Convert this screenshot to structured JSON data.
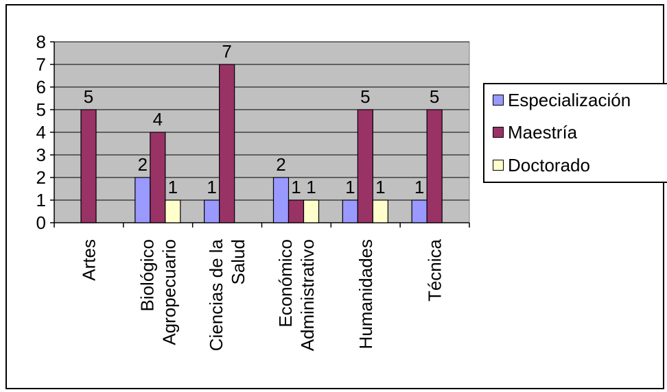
{
  "chart_data": {
    "type": "bar",
    "title": "",
    "xlabel": "",
    "ylabel": "",
    "ylim": [
      0,
      8
    ],
    "yticks": [
      "0",
      "1",
      "2",
      "3",
      "4",
      "5",
      "6",
      "7",
      "8"
    ],
    "grid": true,
    "legend_position": "right",
    "categories": [
      [
        "Artes"
      ],
      [
        "Biológico",
        "Agropecuario"
      ],
      [
        "Ciencias de la",
        "Salud"
      ],
      [
        "Económico",
        "Administrativo"
      ],
      [
        "Humanidades"
      ],
      [
        "Técnica"
      ]
    ],
    "series": [
      {
        "name": "Especialización",
        "color": "#9999ff",
        "values": [
          0,
          2,
          1,
          2,
          1,
          1
        ]
      },
      {
        "name": "Maestría",
        "color": "#993366",
        "values": [
          5,
          4,
          7,
          1,
          5,
          5
        ]
      },
      {
        "name": "Doctorado",
        "color": "#ffffcc",
        "values": [
          0,
          1,
          0,
          1,
          1,
          0
        ]
      }
    ],
    "plot_background": "#c0c0c0"
  },
  "legend": {
    "items": [
      {
        "label": "Especialización",
        "color": "#9999ff"
      },
      {
        "label": "Maestría",
        "color": "#993366"
      },
      {
        "label": "Doctorado",
        "color": "#ffffcc"
      }
    ]
  }
}
